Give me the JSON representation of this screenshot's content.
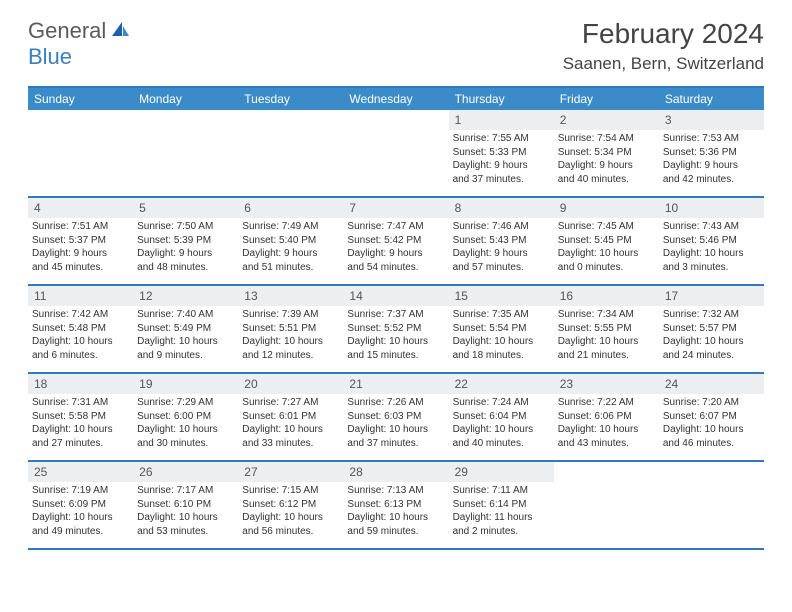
{
  "logo": {
    "text1": "General",
    "text2": "Blue"
  },
  "title": "February 2024",
  "location": "Saanen, Bern, Switzerland",
  "colors": {
    "header_bar": "#3b8bc8",
    "accent_line": "#2d7bbd",
    "daynum_bg": "#eceef0",
    "logo_blue": "#3b7fbf",
    "logo_gray": "#5a5a5a",
    "text": "#333333",
    "bg": "#ffffff"
  },
  "weekdays": [
    "Sunday",
    "Monday",
    "Tuesday",
    "Wednesday",
    "Thursday",
    "Friday",
    "Saturday"
  ],
  "weeks": [
    [
      null,
      null,
      null,
      null,
      {
        "n": "1",
        "sr": "Sunrise: 7:55 AM",
        "ss": "Sunset: 5:33 PM",
        "d1": "Daylight: 9 hours",
        "d2": "and 37 minutes."
      },
      {
        "n": "2",
        "sr": "Sunrise: 7:54 AM",
        "ss": "Sunset: 5:34 PM",
        "d1": "Daylight: 9 hours",
        "d2": "and 40 minutes."
      },
      {
        "n": "3",
        "sr": "Sunrise: 7:53 AM",
        "ss": "Sunset: 5:36 PM",
        "d1": "Daylight: 9 hours",
        "d2": "and 42 minutes."
      }
    ],
    [
      {
        "n": "4",
        "sr": "Sunrise: 7:51 AM",
        "ss": "Sunset: 5:37 PM",
        "d1": "Daylight: 9 hours",
        "d2": "and 45 minutes."
      },
      {
        "n": "5",
        "sr": "Sunrise: 7:50 AM",
        "ss": "Sunset: 5:39 PM",
        "d1": "Daylight: 9 hours",
        "d2": "and 48 minutes."
      },
      {
        "n": "6",
        "sr": "Sunrise: 7:49 AM",
        "ss": "Sunset: 5:40 PM",
        "d1": "Daylight: 9 hours",
        "d2": "and 51 minutes."
      },
      {
        "n": "7",
        "sr": "Sunrise: 7:47 AM",
        "ss": "Sunset: 5:42 PM",
        "d1": "Daylight: 9 hours",
        "d2": "and 54 minutes."
      },
      {
        "n": "8",
        "sr": "Sunrise: 7:46 AM",
        "ss": "Sunset: 5:43 PM",
        "d1": "Daylight: 9 hours",
        "d2": "and 57 minutes."
      },
      {
        "n": "9",
        "sr": "Sunrise: 7:45 AM",
        "ss": "Sunset: 5:45 PM",
        "d1": "Daylight: 10 hours",
        "d2": "and 0 minutes."
      },
      {
        "n": "10",
        "sr": "Sunrise: 7:43 AM",
        "ss": "Sunset: 5:46 PM",
        "d1": "Daylight: 10 hours",
        "d2": "and 3 minutes."
      }
    ],
    [
      {
        "n": "11",
        "sr": "Sunrise: 7:42 AM",
        "ss": "Sunset: 5:48 PM",
        "d1": "Daylight: 10 hours",
        "d2": "and 6 minutes."
      },
      {
        "n": "12",
        "sr": "Sunrise: 7:40 AM",
        "ss": "Sunset: 5:49 PM",
        "d1": "Daylight: 10 hours",
        "d2": "and 9 minutes."
      },
      {
        "n": "13",
        "sr": "Sunrise: 7:39 AM",
        "ss": "Sunset: 5:51 PM",
        "d1": "Daylight: 10 hours",
        "d2": "and 12 minutes."
      },
      {
        "n": "14",
        "sr": "Sunrise: 7:37 AM",
        "ss": "Sunset: 5:52 PM",
        "d1": "Daylight: 10 hours",
        "d2": "and 15 minutes."
      },
      {
        "n": "15",
        "sr": "Sunrise: 7:35 AM",
        "ss": "Sunset: 5:54 PM",
        "d1": "Daylight: 10 hours",
        "d2": "and 18 minutes."
      },
      {
        "n": "16",
        "sr": "Sunrise: 7:34 AM",
        "ss": "Sunset: 5:55 PM",
        "d1": "Daylight: 10 hours",
        "d2": "and 21 minutes."
      },
      {
        "n": "17",
        "sr": "Sunrise: 7:32 AM",
        "ss": "Sunset: 5:57 PM",
        "d1": "Daylight: 10 hours",
        "d2": "and 24 minutes."
      }
    ],
    [
      {
        "n": "18",
        "sr": "Sunrise: 7:31 AM",
        "ss": "Sunset: 5:58 PM",
        "d1": "Daylight: 10 hours",
        "d2": "and 27 minutes."
      },
      {
        "n": "19",
        "sr": "Sunrise: 7:29 AM",
        "ss": "Sunset: 6:00 PM",
        "d1": "Daylight: 10 hours",
        "d2": "and 30 minutes."
      },
      {
        "n": "20",
        "sr": "Sunrise: 7:27 AM",
        "ss": "Sunset: 6:01 PM",
        "d1": "Daylight: 10 hours",
        "d2": "and 33 minutes."
      },
      {
        "n": "21",
        "sr": "Sunrise: 7:26 AM",
        "ss": "Sunset: 6:03 PM",
        "d1": "Daylight: 10 hours",
        "d2": "and 37 minutes."
      },
      {
        "n": "22",
        "sr": "Sunrise: 7:24 AM",
        "ss": "Sunset: 6:04 PM",
        "d1": "Daylight: 10 hours",
        "d2": "and 40 minutes."
      },
      {
        "n": "23",
        "sr": "Sunrise: 7:22 AM",
        "ss": "Sunset: 6:06 PM",
        "d1": "Daylight: 10 hours",
        "d2": "and 43 minutes."
      },
      {
        "n": "24",
        "sr": "Sunrise: 7:20 AM",
        "ss": "Sunset: 6:07 PM",
        "d1": "Daylight: 10 hours",
        "d2": "and 46 minutes."
      }
    ],
    [
      {
        "n": "25",
        "sr": "Sunrise: 7:19 AM",
        "ss": "Sunset: 6:09 PM",
        "d1": "Daylight: 10 hours",
        "d2": "and 49 minutes."
      },
      {
        "n": "26",
        "sr": "Sunrise: 7:17 AM",
        "ss": "Sunset: 6:10 PM",
        "d1": "Daylight: 10 hours",
        "d2": "and 53 minutes."
      },
      {
        "n": "27",
        "sr": "Sunrise: 7:15 AM",
        "ss": "Sunset: 6:12 PM",
        "d1": "Daylight: 10 hours",
        "d2": "and 56 minutes."
      },
      {
        "n": "28",
        "sr": "Sunrise: 7:13 AM",
        "ss": "Sunset: 6:13 PM",
        "d1": "Daylight: 10 hours",
        "d2": "and 59 minutes."
      },
      {
        "n": "29",
        "sr": "Sunrise: 7:11 AM",
        "ss": "Sunset: 6:14 PM",
        "d1": "Daylight: 11 hours",
        "d2": "and 2 minutes."
      },
      null,
      null
    ]
  ]
}
